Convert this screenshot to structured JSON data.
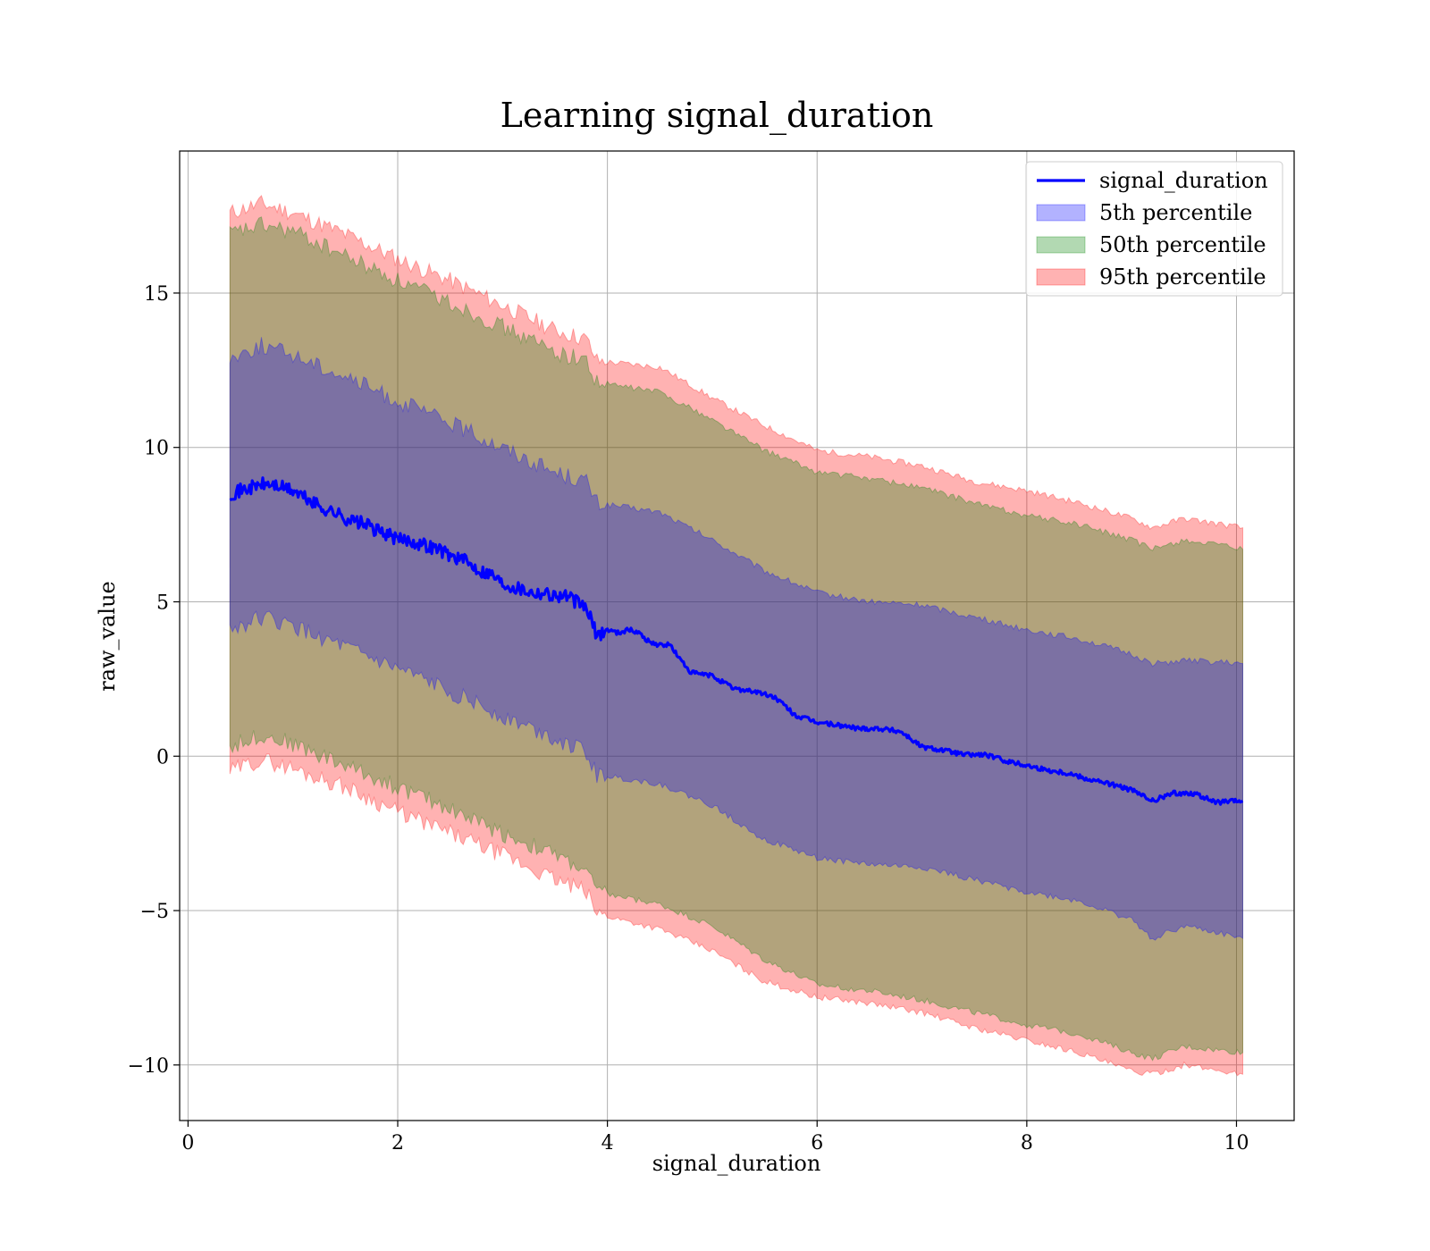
{
  "chart_data": {
    "type": "line",
    "title": "Learning signal_duration",
    "xlabel": "signal_duration",
    "ylabel": "raw_value",
    "xlim": [
      -0.08,
      10.55
    ],
    "ylim": [
      -11.8,
      19.6
    ],
    "xticks": [
      0,
      2,
      4,
      6,
      8,
      10
    ],
    "yticks": [
      -10,
      -5,
      0,
      5,
      10,
      15
    ],
    "ytick_labels": [
      "−10",
      "−5",
      "0",
      "5",
      "10",
      "15"
    ],
    "grid": true,
    "legend_position": "top-right",
    "colors": {
      "line": "#0000ff",
      "band_5th": "#0000ff",
      "band_50th": "#008000",
      "band_95th": "#ff0000"
    },
    "series": [
      {
        "name": "signal_duration",
        "kind": "line",
        "x": [
          0.4,
          0.5,
          0.6,
          0.7,
          0.8,
          0.9,
          1.0,
          1.1,
          1.2,
          1.3,
          1.4,
          1.5,
          1.6,
          1.7,
          1.8,
          1.9,
          2.0,
          2.1,
          2.2,
          2.3,
          2.4,
          2.5,
          2.6,
          2.7,
          2.8,
          2.9,
          3.0,
          3.1,
          3.2,
          3.3,
          3.4,
          3.5,
          3.6,
          3.7,
          3.8,
          3.9,
          4.0,
          4.1,
          4.2,
          4.3,
          4.4,
          4.5,
          4.6,
          4.7,
          4.8,
          5.0,
          5.2,
          5.4,
          5.6,
          5.8,
          6.0,
          6.2,
          6.4,
          6.6,
          6.8,
          7.0,
          7.2,
          7.4,
          7.6,
          7.8,
          8.0,
          8.2,
          8.4,
          8.6,
          8.8,
          9.0,
          9.2,
          9.4,
          9.6,
          9.8,
          10.06
        ],
        "y": [
          8.5,
          8.6,
          8.7,
          8.8,
          8.8,
          8.7,
          8.6,
          8.4,
          8.2,
          8.0,
          7.9,
          7.7,
          7.6,
          7.5,
          7.3,
          7.2,
          7.0,
          7.0,
          6.9,
          6.8,
          6.7,
          6.5,
          6.4,
          6.2,
          6.0,
          5.9,
          5.6,
          5.5,
          5.4,
          5.3,
          5.3,
          5.2,
          5.2,
          5.0,
          4.8,
          3.9,
          4.1,
          4.0,
          4.1,
          4.0,
          3.7,
          3.6,
          3.6,
          3.1,
          2.7,
          2.6,
          2.2,
          2.1,
          1.9,
          1.3,
          1.1,
          1.0,
          0.9,
          0.9,
          0.8,
          0.3,
          0.2,
          0.05,
          0.05,
          -0.15,
          -0.3,
          -0.45,
          -0.55,
          -0.75,
          -0.9,
          -1.1,
          -1.45,
          -1.2,
          -1.2,
          -1.5,
          -1.45
        ]
      },
      {
        "name": "5th percentile",
        "kind": "band",
        "x": [
          0.4,
          0.7,
          1.0,
          1.5,
          2.0,
          2.5,
          3.0,
          3.5,
          3.8,
          3.9,
          4.5,
          5.0,
          5.5,
          6.0,
          6.5,
          7.0,
          7.5,
          8.0,
          8.5,
          9.0,
          9.2,
          9.5,
          10.06
        ],
        "upper": [
          12.9,
          13.3,
          13.0,
          12.3,
          11.5,
          10.8,
          10.0,
          9.2,
          8.9,
          8.2,
          7.9,
          7.0,
          6.0,
          5.3,
          5.0,
          4.9,
          4.5,
          4.1,
          3.8,
          3.3,
          3.0,
          3.1,
          3.0
        ],
        "lower": [
          4.1,
          4.5,
          4.2,
          3.5,
          2.8,
          2.1,
          1.3,
          0.6,
          0.1,
          -0.6,
          -0.9,
          -1.6,
          -2.7,
          -3.3,
          -3.5,
          -3.6,
          -4.0,
          -4.4,
          -4.7,
          -5.3,
          -5.9,
          -5.5,
          -5.9
        ]
      },
      {
        "name": "50th percentile",
        "kind": "band",
        "x": [
          0.4,
          0.7,
          1.0,
          1.5,
          2.0,
          2.5,
          3.0,
          3.5,
          3.8,
          3.9,
          4.5,
          5.0,
          5.5,
          6.0,
          6.5,
          7.0,
          7.5,
          8.0,
          8.5,
          9.0,
          9.2,
          9.5,
          10.06
        ],
        "upper": [
          16.9,
          17.2,
          17.0,
          16.2,
          15.4,
          14.7,
          13.9,
          13.1,
          12.8,
          12.1,
          11.8,
          10.9,
          9.9,
          9.2,
          9.0,
          8.7,
          8.2,
          7.8,
          7.5,
          7.0,
          6.7,
          7.0,
          6.7
        ],
        "lower": [
          0.3,
          0.7,
          0.4,
          -0.3,
          -1.0,
          -1.7,
          -2.5,
          -3.2,
          -3.7,
          -4.4,
          -4.8,
          -5.5,
          -6.6,
          -7.4,
          -7.6,
          -7.9,
          -8.3,
          -8.7,
          -9.0,
          -9.6,
          -9.8,
          -9.4,
          -9.6
        ]
      },
      {
        "name": "95th percentile",
        "kind": "band",
        "x": [
          0.4,
          0.7,
          1.0,
          1.5,
          2.0,
          2.5,
          3.0,
          3.5,
          3.8,
          3.9,
          4.5,
          5.0,
          5.5,
          6.0,
          6.5,
          7.0,
          7.5,
          8.0,
          8.5,
          9.0,
          9.2,
          9.5,
          10.06
        ],
        "upper": [
          17.6,
          17.9,
          17.6,
          16.9,
          16.1,
          15.4,
          14.6,
          13.8,
          13.5,
          12.8,
          12.6,
          11.6,
          10.7,
          9.9,
          9.7,
          9.4,
          8.9,
          8.6,
          8.2,
          7.7,
          7.4,
          7.7,
          7.4
        ],
        "lower": [
          -0.5,
          -0.1,
          -0.4,
          -1.0,
          -1.8,
          -2.5,
          -3.2,
          -4.0,
          -4.4,
          -5.1,
          -5.6,
          -6.3,
          -7.3,
          -7.8,
          -8.0,
          -8.3,
          -8.8,
          -9.2,
          -9.6,
          -10.2,
          -10.3,
          -10.0,
          -10.3
        ]
      }
    ]
  }
}
